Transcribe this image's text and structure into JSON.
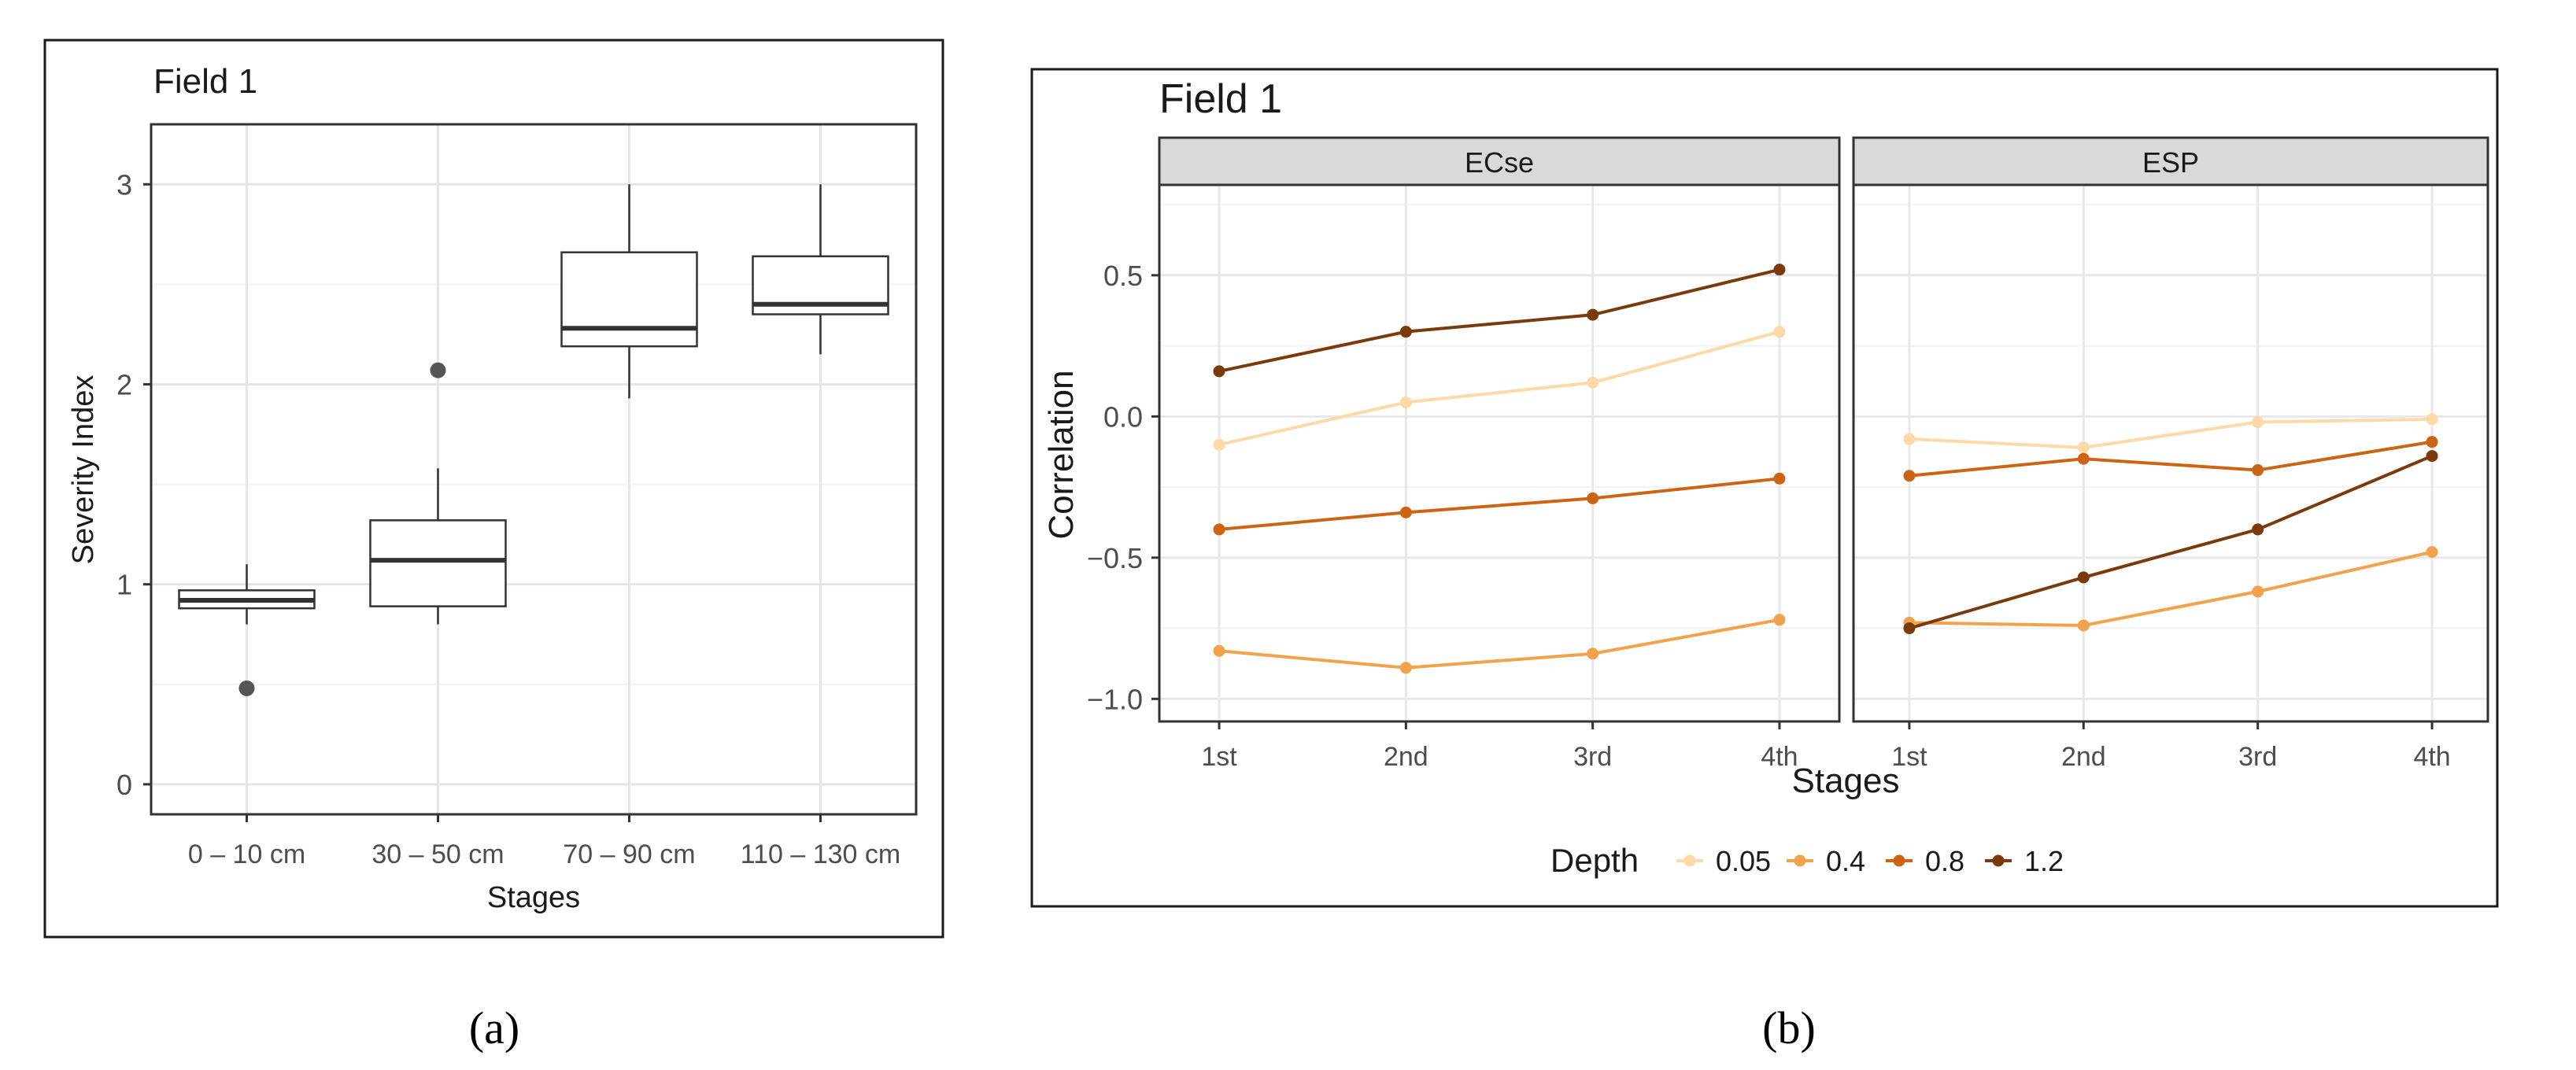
{
  "chart_data": [
    {
      "type": "box",
      "panel_label": "(a)",
      "title": "Field 1",
      "xlabel": "Stages",
      "ylabel": "Severity Index",
      "ylim": [
        -0.15,
        3.3
      ],
      "yticks": [
        0,
        1,
        2,
        3
      ],
      "grid": true,
      "categories": [
        "0 – 10 cm",
        "30 – 50 cm",
        "70 – 90 cm",
        "110 – 130 cm"
      ],
      "boxes": [
        {
          "category": "0 – 10 cm",
          "whisker_low": 0.8,
          "q1": 0.88,
          "median": 0.92,
          "q3": 0.97,
          "whisker_high": 1.1,
          "outliers": [
            0.48
          ]
        },
        {
          "category": "30 – 50 cm",
          "whisker_low": 0.8,
          "q1": 0.89,
          "median": 1.12,
          "q3": 1.32,
          "whisker_high": 1.58,
          "outliers": [
            2.07
          ]
        },
        {
          "category": "70 – 90 cm",
          "whisker_low": 1.93,
          "q1": 2.19,
          "median": 2.28,
          "q3": 2.66,
          "whisker_high": 3.0,
          "outliers": []
        },
        {
          "category": "110 – 130 cm",
          "whisker_low": 2.15,
          "q1": 2.35,
          "median": 2.4,
          "q3": 2.64,
          "whisker_high": 3.0,
          "outliers": []
        }
      ]
    },
    {
      "type": "line",
      "panel_label": "(b)",
      "title": "Field 1",
      "xlabel": "Stages",
      "ylabel": "Correlation",
      "ylim": [
        -1.08,
        0.82
      ],
      "yticks": [
        0.5,
        0.0,
        -0.5,
        -1.0
      ],
      "ytick_labels": [
        "0.5",
        "0.0",
        "−0.5",
        "−1.0"
      ],
      "grid": true,
      "x": [
        "1st",
        "2nd",
        "3rd",
        "4th"
      ],
      "legend": {
        "title": "Depth",
        "position": "bottom"
      },
      "facets": [
        {
          "name": "ECse",
          "series": [
            {
              "name": "0.05",
              "values": [
                -0.1,
                0.05,
                0.12,
                0.3
              ]
            },
            {
              "name": "0.4",
              "values": [
                -0.83,
                -0.89,
                -0.84,
                -0.72
              ]
            },
            {
              "name": "0.8",
              "values": [
                -0.4,
                -0.34,
                -0.29,
                -0.22
              ]
            },
            {
              "name": "1.2",
              "values": [
                0.16,
                0.3,
                0.36,
                0.52
              ]
            }
          ]
        },
        {
          "name": "ESP",
          "series": [
            {
              "name": "0.05",
              "values": [
                -0.08,
                -0.11,
                -0.02,
                -0.01
              ]
            },
            {
              "name": "0.4",
              "values": [
                -0.73,
                -0.74,
                -0.62,
                -0.48
              ]
            },
            {
              "name": "0.8",
              "values": [
                -0.21,
                -0.15,
                -0.19,
                -0.09
              ]
            },
            {
              "name": "1.2",
              "values": [
                -0.75,
                -0.57,
                -0.4,
                -0.14
              ]
            }
          ]
        }
      ],
      "colors": {
        "0.05": "#fdd9a8",
        "0.4": "#f2a24b",
        "0.8": "#cc6414",
        "1.2": "#7a3a0c"
      }
    }
  ]
}
